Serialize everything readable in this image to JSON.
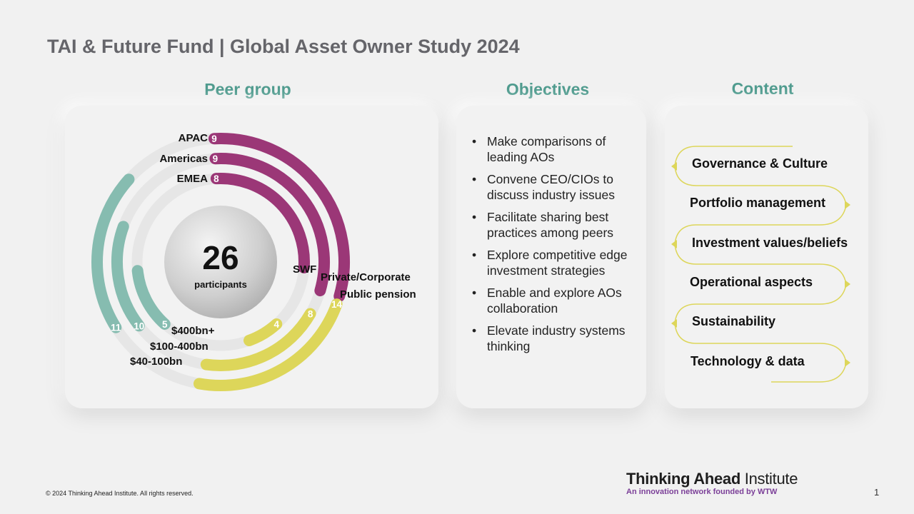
{
  "title": "TAI & Future Fund | Global Asset Owner Study 2024",
  "sections": {
    "peer_group": "Peer group",
    "objectives": "Objectives",
    "content": "Content"
  },
  "peer_group": {
    "center_value": "26",
    "center_label": "participants",
    "region": [
      {
        "label": "APAC",
        "value": "9"
      },
      {
        "label": "Americas",
        "value": "9"
      },
      {
        "label": "EMEA",
        "value": "8"
      }
    ],
    "type": [
      {
        "label": "SWF",
        "value": "4"
      },
      {
        "label": "Private/Corporate",
        "value": "8"
      },
      {
        "label": "Public pension",
        "value": "14"
      }
    ],
    "size": [
      {
        "label": "$400bn+",
        "value": "5"
      },
      {
        "label": "$100-400bn",
        "value": "10"
      },
      {
        "label": "$40-100bn",
        "value": "11"
      }
    ],
    "colors": {
      "region": "#9b3777",
      "type": "#ddd65a",
      "size": "#86bcb0",
      "track": "#e6e6e6"
    }
  },
  "objectives": [
    "Make comparisons of leading AOs",
    "Convene CEO/CIOs to discuss industry issues",
    "Facilitate sharing best practices among peers",
    "Explore competitive edge investment strategies",
    "Enable and explore AOs collaboration",
    "Elevate industry systems thinking"
  ],
  "content": [
    "Governance & Culture",
    "Portfolio management",
    "Investment values/beliefs",
    "Operational aspects",
    "Sustainability",
    "Technology & data"
  ],
  "footer": {
    "copyright": "© 2024 Thinking Ahead Institute. All rights reserved.",
    "logo_bold": "Thinking Ahead",
    "logo_light": " Institute",
    "logo_tagline": "An innovation network founded by WTW",
    "page_number": "1"
  }
}
